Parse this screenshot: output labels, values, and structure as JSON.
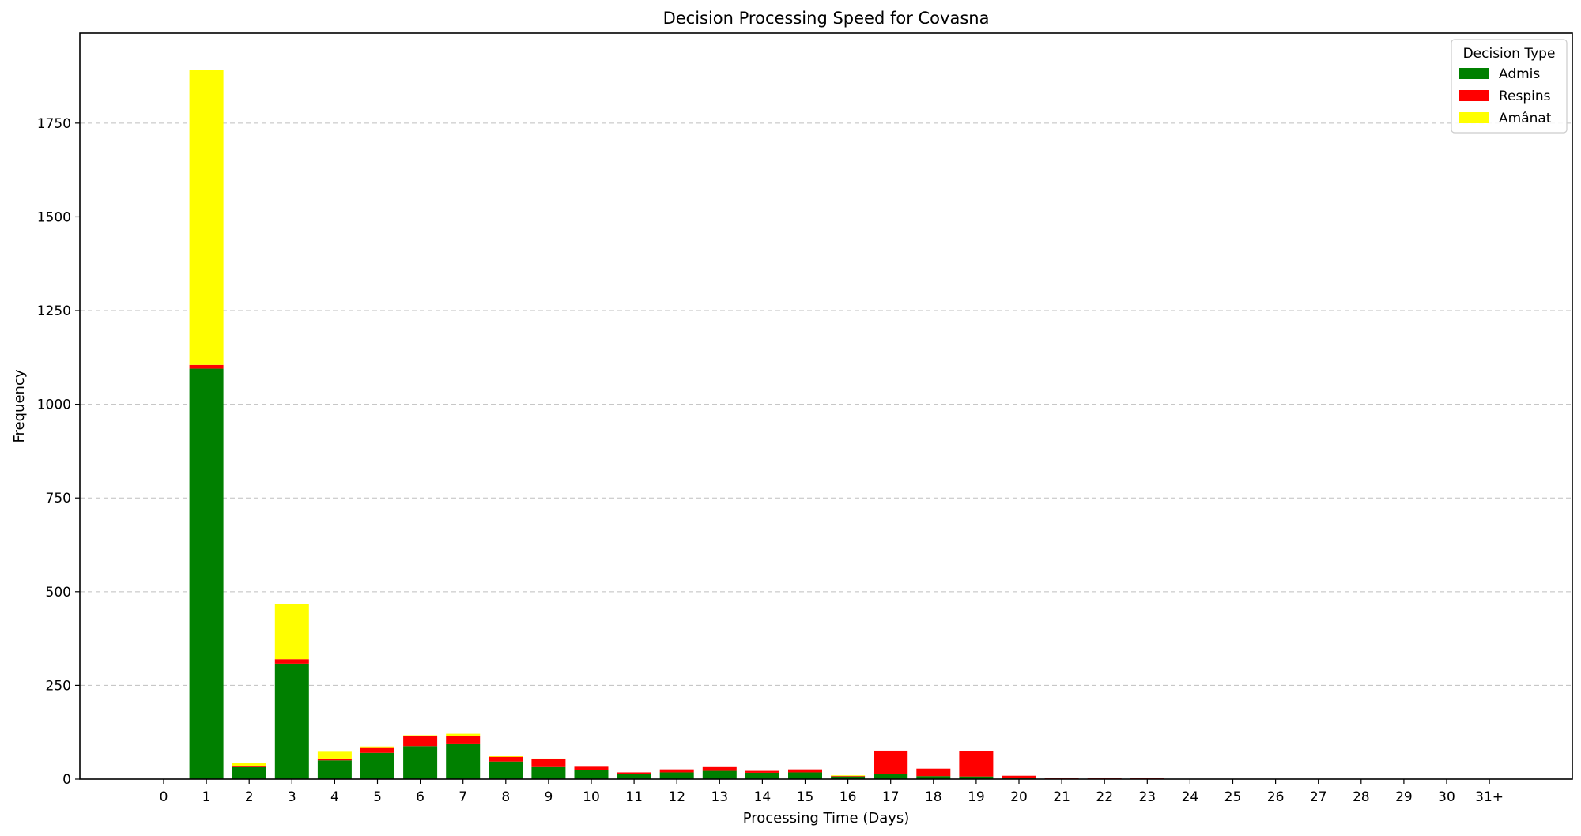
{
  "chart_data": {
    "type": "bar",
    "stacked": true,
    "title": "Decision Processing Speed for Covasna",
    "xlabel": "Processing Time (Days)",
    "ylabel": "Frequency",
    "ylim": [
      0,
      1990
    ],
    "yticks": [
      0,
      250,
      500,
      750,
      1000,
      1250,
      1500,
      1750
    ],
    "grid": "y-dashed",
    "legend_title": "Decision Type",
    "legend_position": "top-right",
    "categories": [
      "0",
      "1",
      "2",
      "3",
      "4",
      "5",
      "6",
      "7",
      "8",
      "9",
      "10",
      "11",
      "12",
      "13",
      "14",
      "15",
      "16",
      "17",
      "18",
      "19",
      "20",
      "21",
      "22",
      "23",
      "24",
      "25",
      "26",
      "27",
      "28",
      "29",
      "30",
      "31+"
    ],
    "series": [
      {
        "name": "Admis",
        "color": "#008000",
        "values": [
          0,
          1095,
          32,
          308,
          50,
          70,
          88,
          95,
          47,
          32,
          25,
          13,
          18,
          22,
          17,
          18,
          7,
          14,
          8,
          7,
          2,
          1,
          1,
          1,
          0,
          0,
          0,
          0,
          0,
          0,
          0,
          0
        ]
      },
      {
        "name": "Respins",
        "color": "#ff0000",
        "values": [
          0,
          10,
          3,
          12,
          5,
          15,
          28,
          20,
          13,
          22,
          8,
          5,
          8,
          10,
          5,
          8,
          2,
          62,
          20,
          67,
          7,
          1,
          1,
          1,
          0,
          0,
          0,
          0,
          0,
          0,
          0,
          0
        ]
      },
      {
        "name": "Amânat",
        "color": "#ffff00",
        "values": [
          0,
          787,
          9,
          147,
          18,
          2,
          1,
          6,
          1,
          1,
          0,
          0,
          0,
          0,
          0,
          0,
          1,
          0,
          0,
          0,
          0,
          0,
          0,
          0,
          0,
          0,
          0,
          0,
          0,
          0,
          0,
          0
        ]
      }
    ]
  }
}
